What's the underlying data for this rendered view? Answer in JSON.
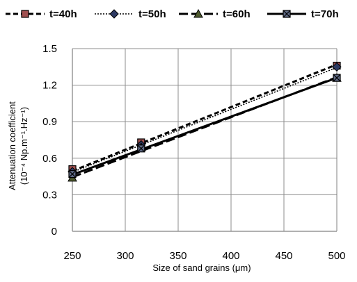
{
  "chart_data": {
    "type": "line",
    "xlabel": "Size of sand grains (μm)",
    "ylabel_line1": "Attenuation coefficient",
    "ylabel_line2": "(10⁻⁴ Np.m⁻¹.Hz⁻¹)",
    "xlim": [
      250,
      500
    ],
    "ylim": [
      0,
      1.5
    ],
    "xticks": [
      250,
      300,
      350,
      400,
      450,
      500
    ],
    "yticks": [
      "0",
      "0.3",
      "0.6",
      "0.9",
      "1.2",
      "1.5"
    ],
    "grid": "both",
    "legend_position": "top",
    "series": [
      {
        "name": "t=40h",
        "x": [
          250,
          315,
          500
        ],
        "y": [
          0.51,
          0.73,
          1.36
        ],
        "trend": [
          [
            250,
            0.495
          ],
          [
            500,
            1.37
          ]
        ],
        "marker": "square",
        "dash": "7,4",
        "marker_fill": "#a05050"
      },
      {
        "name": "t=50h",
        "x": [
          250,
          315,
          500
        ],
        "y": [
          0.49,
          0.71,
          1.35
        ],
        "trend": [
          [
            250,
            0.485
          ],
          [
            500,
            1.345
          ]
        ],
        "marker": "diamond",
        "dash": "2,2",
        "marker_fill": "#2d3a63"
      },
      {
        "name": "t=60h",
        "x": [
          250,
          315,
          500
        ],
        "y": [
          0.44,
          0.69,
          1.26
        ],
        "trend": [
          [
            250,
            0.445
          ],
          [
            500,
            1.265
          ]
        ],
        "marker": "triangle",
        "dash": "13,5",
        "marker_fill": "#4e5a2e"
      },
      {
        "name": "t=70h",
        "x": [
          250,
          315,
          500
        ],
        "y": [
          0.47,
          0.68,
          1.26
        ],
        "trend": [
          [
            250,
            0.465
          ],
          [
            500,
            1.26
          ]
        ],
        "marker": "square-x",
        "dash": "",
        "marker_fill": "#5f6a85"
      }
    ]
  }
}
